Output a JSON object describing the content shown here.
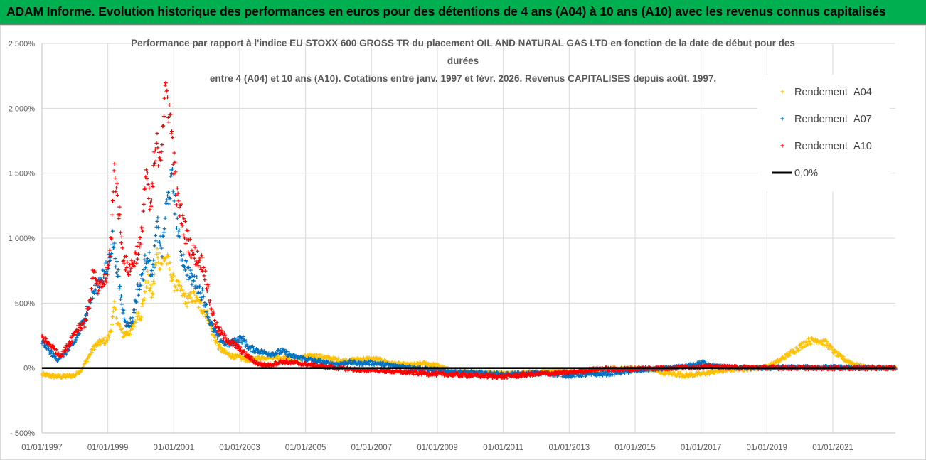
{
  "banner": {
    "title": "ADAM Informe. Evolution historique des performances en euros pour des détentions de 4 ans (A04) à 10 ans (A10) avec les revenus connus capitalisés"
  },
  "colors": {
    "banner_bg": "#00b050",
    "A04": "#ffc000",
    "A07": "#0070c0",
    "A10": "#ff0000",
    "zero": "#000000"
  },
  "chart_data": {
    "type": "scatter",
    "title_lines": [
      "Performance par rapport à l'indice EU STOXX 600 GROSS TR  du placement OIL AND NATURAL GAS LTD en fonction de la date de début pour des",
      "durées",
      "entre 4 (A04) et 10 ans (A10). Cotations entre janv. 1997 et févr. 2026. Revenus CAPITALISES depuis août. 1997."
    ],
    "x_unit": "year",
    "xlim": [
      1997.0,
      2022.9
    ],
    "ylim": [
      -500,
      2500
    ],
    "y_ticks": [
      {
        "value": 2500,
        "label": "2 500%"
      },
      {
        "value": 2000,
        "label": "2 000%"
      },
      {
        "value": 1500,
        "label": "1 500%"
      },
      {
        "value": 1000,
        "label": "1 000%"
      },
      {
        "value": 500,
        "label": "500%"
      },
      {
        "value": 0,
        "label": "0%"
      },
      {
        "value": -500,
        "label": "- 500%"
      }
    ],
    "x_ticks": [
      {
        "value": 1997,
        "label": "01/01/1997"
      },
      {
        "value": 1999,
        "label": "01/01/1999"
      },
      {
        "value": 2001,
        "label": "01/01/2001"
      },
      {
        "value": 2003,
        "label": "01/01/2003"
      },
      {
        "value": 2005,
        "label": "01/01/2005"
      },
      {
        "value": 2007,
        "label": "01/01/2007"
      },
      {
        "value": 2009,
        "label": "01/01/2009"
      },
      {
        "value": 2011,
        "label": "01/01/2011"
      },
      {
        "value": 2013,
        "label": "01/01/2013"
      },
      {
        "value": 2015,
        "label": "01/01/2015"
      },
      {
        "value": 2017,
        "label": "01/01/2017"
      },
      {
        "value": 2019,
        "label": "01/01/2019"
      },
      {
        "value": 2021,
        "label": "01/01/2021"
      }
    ],
    "legend": [
      {
        "label": "Rendement_A04",
        "key": "A04",
        "marker": "+"
      },
      {
        "label": "Rendement_A07",
        "key": "A07",
        "marker": "+"
      },
      {
        "label": "Rendement_A10",
        "key": "A10",
        "marker": "+"
      },
      {
        "label": "0,0%",
        "key": "zero",
        "marker": "line"
      }
    ],
    "legend_position": "right",
    "zero_line": 0,
    "series": [
      {
        "name": "Rendement_A04",
        "key": "A04",
        "points": [
          [
            1997.0,
            -50
          ],
          [
            1997.3,
            -60
          ],
          [
            1997.6,
            -65
          ],
          [
            1998.0,
            -55
          ],
          [
            1998.2,
            -10
          ],
          [
            1998.4,
            80
          ],
          [
            1998.6,
            170
          ],
          [
            1998.8,
            200
          ],
          [
            1999.0,
            220
          ],
          [
            1999.1,
            300
          ],
          [
            1999.2,
            470
          ],
          [
            1999.3,
            350
          ],
          [
            1999.45,
            260
          ],
          [
            1999.6,
            270
          ],
          [
            1999.75,
            300
          ],
          [
            1999.9,
            420
          ],
          [
            2000.0,
            400
          ],
          [
            2000.2,
            700
          ],
          [
            2000.35,
            550
          ],
          [
            2000.5,
            900
          ],
          [
            2000.6,
            800
          ],
          [
            2000.75,
            860
          ],
          [
            2000.9,
            750
          ],
          [
            2001.0,
            650
          ],
          [
            2001.2,
            600
          ],
          [
            2001.4,
            520
          ],
          [
            2001.6,
            550
          ],
          [
            2001.8,
            480
          ],
          [
            2002.0,
            420
          ],
          [
            2002.2,
            250
          ],
          [
            2002.4,
            150
          ],
          [
            2002.6,
            110
          ],
          [
            2002.8,
            90
          ],
          [
            2003.0,
            80
          ],
          [
            2003.3,
            60
          ],
          [
            2003.6,
            80
          ],
          [
            2004.0,
            90
          ],
          [
            2004.3,
            75
          ],
          [
            2004.6,
            60
          ],
          [
            2005.0,
            85
          ],
          [
            2005.3,
            95
          ],
          [
            2005.6,
            80
          ],
          [
            2006.0,
            60
          ],
          [
            2006.3,
            55
          ],
          [
            2006.6,
            65
          ],
          [
            2007.0,
            70
          ],
          [
            2007.3,
            60
          ],
          [
            2007.6,
            35
          ],
          [
            2008.0,
            25
          ],
          [
            2008.3,
            25
          ],
          [
            2008.6,
            35
          ],
          [
            2009.0,
            20
          ],
          [
            2009.3,
            -10
          ],
          [
            2009.6,
            -25
          ],
          [
            2010.0,
            -30
          ],
          [
            2010.5,
            -35
          ],
          [
            2011.0,
            -40
          ],
          [
            2011.5,
            -35
          ],
          [
            2012.0,
            -30
          ],
          [
            2012.5,
            -20
          ],
          [
            2013.0,
            -25
          ],
          [
            2013.5,
            -20
          ],
          [
            2014.0,
            -10
          ],
          [
            2014.5,
            -5
          ],
          [
            2015.0,
            0
          ],
          [
            2015.5,
            -15
          ],
          [
            2016.0,
            -40
          ],
          [
            2016.5,
            -55
          ],
          [
            2017.0,
            -45
          ],
          [
            2017.5,
            -25
          ],
          [
            2018.0,
            -10
          ],
          [
            2018.5,
            -5
          ],
          [
            2019.0,
            10
          ],
          [
            2019.4,
            60
          ],
          [
            2019.8,
            130
          ],
          [
            2020.2,
            200
          ],
          [
            2020.5,
            220
          ],
          [
            2020.8,
            190
          ],
          [
            2021.1,
            110
          ],
          [
            2021.4,
            60
          ],
          [
            2021.7,
            25
          ],
          [
            2022.0,
            5
          ],
          [
            2022.4,
            0
          ],
          [
            2022.9,
            0
          ]
        ]
      },
      {
        "name": "Rendement_A07",
        "key": "A07",
        "points": [
          [
            1997.0,
            200
          ],
          [
            1997.15,
            160
          ],
          [
            1997.3,
            110
          ],
          [
            1997.45,
            70
          ],
          [
            1997.6,
            90
          ],
          [
            1997.8,
            140
          ],
          [
            1998.0,
            200
          ],
          [
            1998.2,
            320
          ],
          [
            1998.4,
            480
          ],
          [
            1998.6,
            600
          ],
          [
            1998.8,
            700
          ],
          [
            1999.0,
            780
          ],
          [
            1999.15,
            1000
          ],
          [
            1999.3,
            720
          ],
          [
            1999.45,
            450
          ],
          [
            1999.6,
            320
          ],
          [
            1999.75,
            380
          ],
          [
            1999.9,
            600
          ],
          [
            2000.0,
            650
          ],
          [
            2000.2,
            900
          ],
          [
            2000.35,
            700
          ],
          [
            2000.5,
            1100
          ],
          [
            2000.65,
            900
          ],
          [
            2000.75,
            1200
          ],
          [
            2000.85,
            1350
          ],
          [
            2000.95,
            1450
          ],
          [
            2001.05,
            1250
          ],
          [
            2001.2,
            900
          ],
          [
            2001.35,
            800
          ],
          [
            2001.5,
            700
          ],
          [
            2001.7,
            650
          ],
          [
            2001.9,
            550
          ],
          [
            2002.1,
            350
          ],
          [
            2002.3,
            250
          ],
          [
            2002.5,
            200
          ],
          [
            2002.7,
            180
          ],
          [
            2002.9,
            220
          ],
          [
            2003.1,
            220
          ],
          [
            2003.3,
            150
          ],
          [
            2003.5,
            140
          ],
          [
            2003.7,
            120
          ],
          [
            2004.0,
            110
          ],
          [
            2004.3,
            130
          ],
          [
            2004.6,
            90
          ],
          [
            2005.0,
            70
          ],
          [
            2005.3,
            55
          ],
          [
            2005.6,
            40
          ],
          [
            2006.0,
            30
          ],
          [
            2006.3,
            45
          ],
          [
            2006.6,
            35
          ],
          [
            2007.0,
            40
          ],
          [
            2007.3,
            30
          ],
          [
            2007.6,
            20
          ],
          [
            2008.0,
            10
          ],
          [
            2008.4,
            0
          ],
          [
            2008.8,
            -10
          ],
          [
            2009.2,
            -20
          ],
          [
            2009.6,
            -30
          ],
          [
            2010.0,
            -35
          ],
          [
            2010.5,
            -40
          ],
          [
            2011.0,
            -50
          ],
          [
            2011.5,
            -45
          ],
          [
            2012.0,
            -40
          ],
          [
            2012.5,
            -45
          ],
          [
            2013.0,
            -55
          ],
          [
            2013.5,
            -50
          ],
          [
            2014.0,
            -45
          ],
          [
            2014.5,
            -35
          ],
          [
            2015.0,
            -20
          ],
          [
            2015.5,
            -10
          ],
          [
            2016.0,
            0
          ],
          [
            2016.5,
            10
          ],
          [
            2016.9,
            30
          ],
          [
            2017.05,
            45
          ],
          [
            2017.2,
            30
          ],
          [
            2017.5,
            10
          ],
          [
            2018.0,
            5
          ],
          [
            2018.5,
            0
          ],
          [
            2019.0,
            0
          ],
          [
            2019.5,
            5
          ],
          [
            2020.0,
            5
          ],
          [
            2020.5,
            5
          ],
          [
            2021.0,
            5
          ],
          [
            2021.5,
            2
          ],
          [
            2022.0,
            2
          ],
          [
            2022.5,
            0
          ],
          [
            2022.9,
            0
          ]
        ]
      },
      {
        "name": "Rendement_A10",
        "key": "A10",
        "points": [
          [
            1997.0,
            240
          ],
          [
            1997.15,
            200
          ],
          [
            1997.3,
            170
          ],
          [
            1997.45,
            120
          ],
          [
            1997.6,
            100
          ],
          [
            1997.8,
            180
          ],
          [
            1998.0,
            280
          ],
          [
            1998.15,
            330
          ],
          [
            1998.3,
            350
          ],
          [
            1998.45,
            500
          ],
          [
            1998.55,
            750
          ],
          [
            1998.7,
            600
          ],
          [
            1998.85,
            650
          ],
          [
            1999.0,
            720
          ],
          [
            1999.1,
            1000
          ],
          [
            1999.2,
            1550
          ],
          [
            1999.3,
            1300
          ],
          [
            1999.45,
            900
          ],
          [
            1999.6,
            750
          ],
          [
            1999.75,
            800
          ],
          [
            1999.9,
            900
          ],
          [
            2000.0,
            950
          ],
          [
            2000.15,
            1500
          ],
          [
            2000.3,
            1200
          ],
          [
            2000.4,
            1550
          ],
          [
            2000.5,
            1700
          ],
          [
            2000.6,
            1650
          ],
          [
            2000.7,
            2000
          ],
          [
            2000.8,
            2120
          ],
          [
            2000.9,
            1900
          ],
          [
            2001.0,
            1600
          ],
          [
            2001.1,
            1300
          ],
          [
            2001.25,
            1150
          ],
          [
            2001.4,
            1000
          ],
          [
            2001.55,
            900
          ],
          [
            2001.7,
            850
          ],
          [
            2001.9,
            800
          ],
          [
            2002.1,
            500
          ],
          [
            2002.3,
            320
          ],
          [
            2002.5,
            250
          ],
          [
            2002.7,
            200
          ],
          [
            2002.9,
            170
          ],
          [
            2003.1,
            120
          ],
          [
            2003.3,
            80
          ],
          [
            2003.5,
            40
          ],
          [
            2003.8,
            20
          ],
          [
            2004.0,
            30
          ],
          [
            2004.3,
            50
          ],
          [
            2004.6,
            40
          ],
          [
            2005.0,
            30
          ],
          [
            2005.3,
            20
          ],
          [
            2005.6,
            10
          ],
          [
            2006.0,
            0
          ],
          [
            2006.4,
            -10
          ],
          [
            2006.8,
            -20
          ],
          [
            2007.0,
            -10
          ],
          [
            2007.4,
            -20
          ],
          [
            2007.8,
            -30
          ],
          [
            2008.2,
            -35
          ],
          [
            2008.6,
            -40
          ],
          [
            2009.0,
            -45
          ],
          [
            2009.5,
            -50
          ],
          [
            2010.0,
            -55
          ],
          [
            2010.5,
            -60
          ],
          [
            2011.0,
            -65
          ],
          [
            2011.5,
            -55
          ],
          [
            2012.0,
            -45
          ],
          [
            2012.5,
            -40
          ],
          [
            2013.0,
            -35
          ],
          [
            2013.5,
            -20
          ],
          [
            2014.0,
            -5
          ],
          [
            2014.5,
            -10
          ],
          [
            2015.0,
            -5
          ],
          [
            2015.5,
            0
          ],
          [
            2016.0,
            0
          ],
          [
            2016.5,
            5
          ],
          [
            2017.0,
            10
          ],
          [
            2017.5,
            10
          ],
          [
            2018.0,
            5
          ],
          [
            2018.5,
            5
          ],
          [
            2019.0,
            5
          ],
          [
            2019.5,
            2
          ],
          [
            2020.0,
            2
          ],
          [
            2020.5,
            0
          ],
          [
            2021.0,
            0
          ],
          [
            2021.5,
            0
          ],
          [
            2022.0,
            0
          ],
          [
            2022.5,
            0
          ],
          [
            2022.9,
            0
          ]
        ]
      }
    ]
  }
}
